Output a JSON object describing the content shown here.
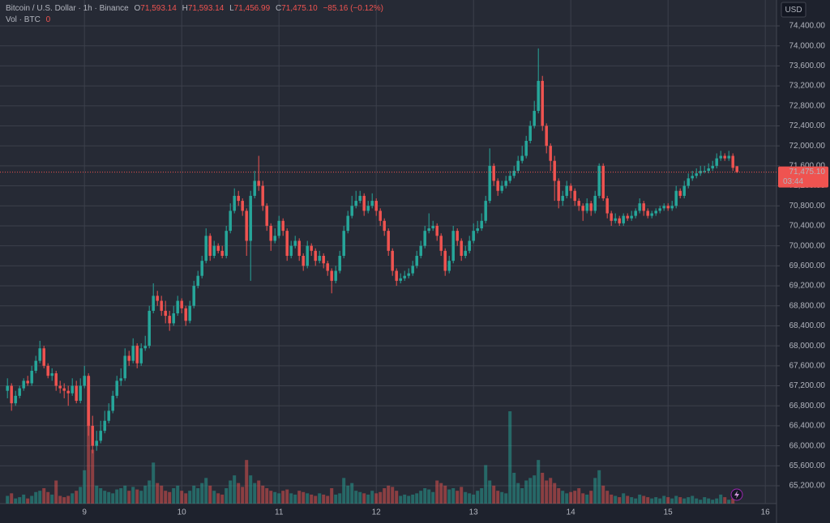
{
  "chart_data": {
    "type": "candlestick",
    "legend": {
      "symbol": "Bitcoin / U.S. Dollar · 1h · Binance",
      "open_label": "O",
      "open": "71,593.14",
      "high_label": "H",
      "high": "71,593.14",
      "low_label": "L",
      "low": "71,456.99",
      "close_label": "C",
      "close": "71,475.10",
      "change": "−85.16 (−0.12%)",
      "volume_label": "Vol · BTC"
    },
    "currency": "USD",
    "last_price_label": "71,475.10",
    "countdown": "03:44",
    "up_color": "#26a69a",
    "down_color": "#ef5350",
    "ylim": [
      64844,
      74918
    ],
    "yticks": [
      {
        "value": 65200,
        "label": "65,200.00"
      },
      {
        "value": 65600,
        "label": "65,600.00"
      },
      {
        "value": 66000,
        "label": "66,000.00"
      },
      {
        "value": 66400,
        "label": "66,400.00"
      },
      {
        "value": 66800,
        "label": "66,800.00"
      },
      {
        "value": 67200,
        "label": "67,200.00"
      },
      {
        "value": 67600,
        "label": "67,600.00"
      },
      {
        "value": 68000,
        "label": "68,000.00"
      },
      {
        "value": 68400,
        "label": "68,400.00"
      },
      {
        "value": 68800,
        "label": "68,800.00"
      },
      {
        "value": 69200,
        "label": "69,200.00"
      },
      {
        "value": 69600,
        "label": "69,600.00"
      },
      {
        "value": 70000,
        "label": "70,000.00"
      },
      {
        "value": 70400,
        "label": "70,400.00"
      },
      {
        "value": 70800,
        "label": "70,800.00"
      },
      {
        "value": 71200,
        "label": "71,200.00"
      },
      {
        "value": 71600,
        "label": "71,600.00"
      },
      {
        "value": 72000,
        "label": "72,000.00"
      },
      {
        "value": 72400,
        "label": "72,400.00"
      },
      {
        "value": 72800,
        "label": "72,800.00"
      },
      {
        "value": 73200,
        "label": "73,200.00"
      },
      {
        "value": 73600,
        "label": "73,600.00"
      },
      {
        "value": 74000,
        "label": "74,000.00"
      },
      {
        "value": 74400,
        "label": "74,400.00"
      }
    ],
    "xlim": [
      -1.84,
      189.76
    ],
    "xticks": [
      {
        "value": 19,
        "label": "9"
      },
      {
        "value": 43,
        "label": "10"
      },
      {
        "value": 67,
        "label": "11"
      },
      {
        "value": 91,
        "label": "12"
      },
      {
        "value": 115,
        "label": "13"
      },
      {
        "value": 139,
        "label": "14"
      },
      {
        "value": 163,
        "label": "15"
      },
      {
        "value": 187,
        "label": "16"
      }
    ],
    "vlim": [
      0,
      6000
    ],
    "candles": [
      [
        67100,
        67350,
        66950,
        67200
      ],
      [
        67200,
        67250,
        66700,
        66850
      ],
      [
        66850,
        67100,
        66800,
        67000
      ],
      [
        67000,
        67200,
        66950,
        67150
      ],
      [
        67150,
        67350,
        67100,
        67300
      ],
      [
        67300,
        67400,
        67200,
        67250
      ],
      [
        67250,
        67600,
        67200,
        67500
      ],
      [
        67500,
        67800,
        67450,
        67700
      ],
      [
        67700,
        68100,
        67650,
        67950
      ],
      [
        67950,
        68000,
        67550,
        67600
      ],
      [
        67600,
        67650,
        67350,
        67400
      ],
      [
        67400,
        67550,
        67300,
        67450
      ],
      [
        67450,
        67500,
        67100,
        67200
      ],
      [
        67200,
        67300,
        67050,
        67150
      ],
      [
        67150,
        67250,
        66950,
        67100
      ],
      [
        67100,
        67200,
        66800,
        67050
      ],
      [
        67050,
        67350,
        67000,
        67200
      ],
      [
        67200,
        67300,
        66850,
        66900
      ],
      [
        66900,
        67350,
        66850,
        67200
      ],
      [
        67200,
        67600,
        67150,
        67400
      ],
      [
        67400,
        67450,
        66200,
        66400
      ],
      [
        66400,
        66600,
        65850,
        66000
      ],
      [
        66000,
        66300,
        65900,
        66100
      ],
      [
        66100,
        66500,
        66050,
        66300
      ],
      [
        66300,
        66700,
        66250,
        66500
      ],
      [
        66500,
        66850,
        66450,
        66700
      ],
      [
        66700,
        67100,
        66650,
        67000
      ],
      [
        67000,
        67400,
        66950,
        67300
      ],
      [
        67300,
        67550,
        67200,
        67350
      ],
      [
        67350,
        67950,
        67300,
        67800
      ],
      [
        67800,
        67900,
        67600,
        67700
      ],
      [
        67700,
        68150,
        67650,
        68000
      ],
      [
        68000,
        68050,
        67550,
        67650
      ],
      [
        67650,
        68050,
        67600,
        67950
      ],
      [
        67950,
        68200,
        67900,
        68000
      ],
      [
        68000,
        68800,
        67950,
        68700
      ],
      [
        68700,
        69250,
        68650,
        69000
      ],
      [
        69000,
        69100,
        68800,
        68900
      ],
      [
        68900,
        69000,
        68600,
        68700
      ],
      [
        68700,
        68900,
        68450,
        68600
      ],
      [
        68600,
        68700,
        68300,
        68450
      ],
      [
        68450,
        68800,
        68400,
        68650
      ],
      [
        68650,
        69000,
        68600,
        68900
      ],
      [
        68900,
        68950,
        68650,
        68750
      ],
      [
        68750,
        68800,
        68400,
        68500
      ],
      [
        68500,
        68900,
        68450,
        68800
      ],
      [
        68800,
        69300,
        68750,
        69200
      ],
      [
        69200,
        69500,
        69150,
        69400
      ],
      [
        69400,
        69800,
        69350,
        69700
      ],
      [
        69700,
        70350,
        69650,
        70200
      ],
      [
        70200,
        70250,
        69700,
        69800
      ],
      [
        69800,
        70100,
        69750,
        70000
      ],
      [
        70000,
        70050,
        69850,
        69900
      ],
      [
        69900,
        70000,
        69750,
        69800
      ],
      [
        69800,
        70400,
        69750,
        70300
      ],
      [
        70300,
        70850,
        70250,
        70700
      ],
      [
        70700,
        71150,
        70650,
        71000
      ],
      [
        71000,
        71100,
        70800,
        70900
      ],
      [
        70900,
        70950,
        70600,
        70700
      ],
      [
        70700,
        70750,
        69800,
        70100
      ],
      [
        70100,
        71100,
        69300,
        71000
      ],
      [
        71000,
        71500,
        70950,
        71300
      ],
      [
        71300,
        71800,
        71100,
        71200
      ],
      [
        71200,
        71300,
        70700,
        70800
      ],
      [
        70800,
        70850,
        70300,
        70400
      ],
      [
        70400,
        70450,
        69900,
        70100
      ],
      [
        70100,
        70350,
        70050,
        70200
      ],
      [
        70200,
        70600,
        70150,
        70500
      ],
      [
        70500,
        70550,
        70200,
        70300
      ],
      [
        70300,
        70350,
        69700,
        69800
      ],
      [
        69800,
        70100,
        69750,
        70000
      ],
      [
        70000,
        70200,
        69950,
        70100
      ],
      [
        70100,
        70150,
        69700,
        69800
      ],
      [
        69800,
        69850,
        69500,
        69600
      ],
      [
        69600,
        70100,
        69550,
        70000
      ],
      [
        70000,
        70050,
        69800,
        69900
      ],
      [
        69900,
        69950,
        69600,
        69700
      ],
      [
        69700,
        69900,
        69650,
        69800
      ],
      [
        69800,
        69850,
        69550,
        69650
      ],
      [
        69650,
        69700,
        69400,
        69500
      ],
      [
        69500,
        69550,
        69050,
        69300
      ],
      [
        69300,
        69600,
        69250,
        69500
      ],
      [
        69500,
        69900,
        69450,
        69800
      ],
      [
        69800,
        70400,
        69750,
        70300
      ],
      [
        70300,
        70700,
        70250,
        70600
      ],
      [
        70600,
        71000,
        70550,
        70800
      ],
      [
        70800,
        71100,
        70750,
        70900
      ],
      [
        70900,
        71100,
        70850,
        71000
      ],
      [
        71000,
        71050,
        70600,
        70700
      ],
      [
        70700,
        70900,
        70650,
        70800
      ],
      [
        70800,
        71050,
        70750,
        70900
      ],
      [
        70900,
        70950,
        70600,
        70700
      ],
      [
        70700,
        70750,
        70400,
        70500
      ],
      [
        70500,
        70550,
        70200,
        70300
      ],
      [
        70300,
        70350,
        69800,
        69900
      ],
      [
        69900,
        69950,
        69400,
        69500
      ],
      [
        69500,
        69550,
        69200,
        69300
      ],
      [
        69300,
        69450,
        69250,
        69350
      ],
      [
        69350,
        69500,
        69300,
        69400
      ],
      [
        69400,
        69550,
        69350,
        69450
      ],
      [
        69450,
        69700,
        69400,
        69600
      ],
      [
        69600,
        69900,
        69550,
        69800
      ],
      [
        69800,
        70100,
        69750,
        70000
      ],
      [
        70000,
        70400,
        69950,
        70300
      ],
      [
        70300,
        70650,
        70250,
        70350
      ],
      [
        70350,
        70500,
        70300,
        70400
      ],
      [
        70400,
        70450,
        70100,
        70200
      ],
      [
        70200,
        70250,
        69800,
        69900
      ],
      [
        69900,
        69950,
        69400,
        69500
      ],
      [
        69500,
        69800,
        69450,
        69700
      ],
      [
        69700,
        70400,
        69650,
        70300
      ],
      [
        70300,
        70350,
        70000,
        70100
      ],
      [
        70100,
        70150,
        69700,
        69800
      ],
      [
        69800,
        70000,
        69750,
        69900
      ],
      [
        69900,
        70200,
        69850,
        70100
      ],
      [
        70100,
        70450,
        70050,
        70300
      ],
      [
        70300,
        70500,
        70250,
        70350
      ],
      [
        70350,
        70650,
        70300,
        70500
      ],
      [
        70500,
        71000,
        70450,
        70900
      ],
      [
        70900,
        71950,
        70850,
        71600
      ],
      [
        71600,
        71650,
        71200,
        71300
      ],
      [
        71300,
        71350,
        71000,
        71100
      ],
      [
        71100,
        71300,
        71050,
        71200
      ],
      [
        71200,
        71400,
        71150,
        71300
      ],
      [
        71300,
        71500,
        71250,
        71400
      ],
      [
        71400,
        71600,
        71350,
        71500
      ],
      [
        71500,
        71800,
        71450,
        71700
      ],
      [
        71700,
        72000,
        71650,
        71800
      ],
      [
        71800,
        72200,
        71750,
        72100
      ],
      [
        72100,
        72500,
        72050,
        72400
      ],
      [
        72400,
        72900,
        72350,
        72700
      ],
      [
        72700,
        73950,
        72650,
        73300
      ],
      [
        73300,
        73400,
        72300,
        72400
      ],
      [
        72400,
        72450,
        71850,
        72000
      ],
      [
        72000,
        72050,
        71500,
        71700
      ],
      [
        71700,
        71800,
        70900,
        71300
      ],
      [
        71300,
        71350,
        70750,
        70900
      ],
      [
        70900,
        71100,
        70800,
        71000
      ],
      [
        71000,
        71300,
        70950,
        71200
      ],
      [
        71200,
        71250,
        70950,
        71100
      ],
      [
        71100,
        71150,
        70800,
        70900
      ],
      [
        70900,
        70950,
        70700,
        70800
      ],
      [
        70800,
        70850,
        70500,
        70700
      ],
      [
        70700,
        70950,
        70650,
        70850
      ],
      [
        70850,
        70900,
        70600,
        70700
      ],
      [
        70700,
        71100,
        70650,
        71000
      ],
      [
        71000,
        71650,
        70950,
        71600
      ],
      [
        71600,
        71650,
        70900,
        70950
      ],
      [
        70950,
        71000,
        70550,
        70650
      ],
      [
        70650,
        70700,
        70400,
        70500
      ],
      [
        70500,
        70650,
        70450,
        70550
      ],
      [
        70550,
        70600,
        70400,
        70450
      ],
      [
        70450,
        70650,
        70400,
        70600
      ],
      [
        70600,
        70650,
        70500,
        70550
      ],
      [
        70550,
        70700,
        70500,
        70600
      ],
      [
        70600,
        70750,
        70550,
        70700
      ],
      [
        70700,
        70950,
        70650,
        70850
      ],
      [
        70850,
        70900,
        70600,
        70700
      ],
      [
        70700,
        70750,
        70550,
        70600
      ],
      [
        70600,
        70700,
        70550,
        70650
      ],
      [
        70650,
        70750,
        70600,
        70700
      ],
      [
        70700,
        70800,
        70650,
        70750
      ],
      [
        70750,
        70850,
        70700,
        70800
      ],
      [
        70800,
        70850,
        70700,
        70750
      ],
      [
        70750,
        70900,
        70700,
        70800
      ],
      [
        70800,
        71200,
        70750,
        71100
      ],
      [
        71100,
        71150,
        70950,
        71000
      ],
      [
        71000,
        71300,
        70950,
        71200
      ],
      [
        71200,
        71450,
        71150,
        71350
      ],
      [
        71350,
        71500,
        71300,
        71400
      ],
      [
        71400,
        71550,
        71350,
        71450
      ],
      [
        71450,
        71600,
        71400,
        71500
      ],
      [
        71500,
        71600,
        71450,
        71500
      ],
      [
        71500,
        71650,
        71450,
        71550
      ],
      [
        71550,
        71700,
        71500,
        71600
      ],
      [
        71600,
        71850,
        71550,
        71750
      ],
      [
        71750,
        71900,
        71700,
        71800
      ],
      [
        71800,
        71850,
        71700,
        71750
      ],
      [
        71750,
        71900,
        71700,
        71800
      ],
      [
        71800,
        71850,
        71500,
        71560.26
      ],
      [
        71593.14,
        71593.14,
        71456.99,
        71475.1
      ]
    ],
    "volumes": [
      300,
      400,
      200,
      250,
      350,
      200,
      300,
      450,
      500,
      600,
      450,
      350,
      900,
      300,
      250,
      300,
      400,
      500,
      650,
      1300,
      4950,
      2100,
      700,
      600,
      500,
      450,
      400,
      550,
      600,
      700,
      500,
      650,
      550,
      500,
      700,
      900,
      1600,
      800,
      700,
      500,
      450,
      600,
      700,
      500,
      400,
      500,
      700,
      600,
      800,
      1000,
      700,
      500,
      400,
      350,
      600,
      900,
      1100,
      800,
      650,
      1700,
      1100,
      800,
      900,
      700,
      600,
      500,
      450,
      400,
      500,
      550,
      400,
      350,
      500,
      450,
      400,
      350,
      300,
      400,
      350,
      300,
      600,
      350,
      400,
      1000,
      700,
      800,
      500,
      450,
      400,
      350,
      500,
      400,
      450,
      600,
      700,
      650,
      500,
      300,
      350,
      300,
      350,
      400,
      500,
      600,
      550,
      450,
      900,
      800,
      700,
      550,
      600,
      500,
      650,
      450,
      400,
      350,
      500,
      600,
      1500,
      900,
      700,
      500,
      450,
      400,
      3600,
      1200,
      800,
      600,
      900,
      1000,
      1100,
      1700,
      1200,
      900,
      1000,
      800,
      600,
      500,
      400,
      450,
      500,
      600,
      400,
      350,
      500,
      1000,
      1300,
      700,
      500,
      350,
      300,
      250,
      400,
      300,
      250,
      200,
      350,
      300,
      250,
      200,
      250,
      200,
      300,
      250,
      200,
      300,
      250,
      200,
      250,
      300,
      200,
      150,
      250,
      200,
      150,
      200,
      350,
      250,
      150,
      200,
      0
    ],
    "grid": true
  }
}
